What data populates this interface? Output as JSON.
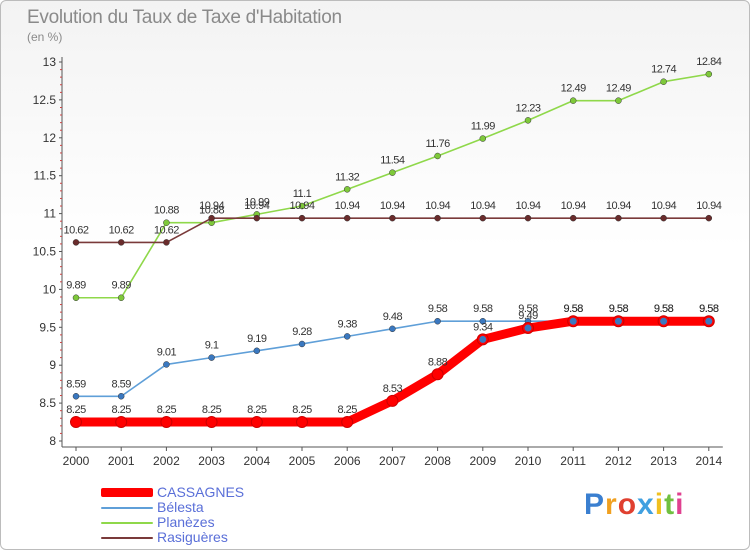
{
  "chart_data": {
    "type": "line",
    "title": "Evolution du Taux de Taxe d'Habitation",
    "subtitle": "(en %)",
    "x": [
      "2000",
      "2001",
      "2002",
      "2003",
      "2004",
      "2005",
      "2006",
      "2007",
      "2008",
      "2009",
      "2010",
      "2011",
      "2012",
      "2013",
      "2014"
    ],
    "ylim": [
      8,
      13
    ],
    "yticks": [
      "8",
      "8.5",
      "9",
      "9.5",
      "10",
      "10.5",
      "11",
      "11.5",
      "12",
      "12.5",
      "13"
    ],
    "grid": false,
    "legend_position": "bottom-left",
    "series": [
      {
        "name": "CASSAGNES",
        "color": "#ff0000",
        "marker_color": "#3a78c0",
        "values": [
          8.25,
          8.25,
          8.25,
          8.25,
          8.25,
          8.25,
          8.25,
          8.53,
          8.88,
          9.34,
          9.49,
          9.58,
          9.58,
          9.58,
          9.58
        ],
        "labels": [
          "8.25",
          "8.25",
          "8.25",
          "8.25",
          "8.25",
          "8.25",
          "8.25",
          "8.53",
          "8.88",
          "9.34",
          "9.49",
          "9.58",
          "9.58",
          "9.58",
          "9.58"
        ]
      },
      {
        "name": "Bélesta",
        "color": "#5f9fd8",
        "marker_color": "#3a78c0",
        "values": [
          8.59,
          8.59,
          9.01,
          9.1,
          9.19,
          9.28,
          9.38,
          9.48,
          9.58,
          9.58,
          9.58,
          9.58,
          9.58,
          9.58,
          9.58
        ],
        "labels": [
          "8.59",
          "8.59",
          "9.01",
          "9.1",
          "9.19",
          "9.28",
          "9.38",
          "9.48",
          "9.58",
          "9.58",
          "9.58",
          "9.58",
          "9.58",
          "9.58",
          "9.58"
        ]
      },
      {
        "name": "Planèzes",
        "color": "#8fd84a",
        "marker_color": "#7ec83a",
        "values": [
          9.89,
          9.89,
          10.88,
          10.88,
          10.99,
          11.1,
          11.32,
          11.54,
          11.76,
          11.99,
          12.23,
          12.49,
          12.49,
          12.74,
          12.84
        ],
        "labels": [
          "9.89",
          "9.89",
          "10.88",
          "10.88",
          "10.99",
          "11.1",
          "11.32",
          "11.54",
          "11.76",
          "11.99",
          "12.23",
          "12.49",
          "12.49",
          "12.74",
          "12.84"
        ]
      },
      {
        "name": "Rasiguères",
        "color": "#7a3a3a",
        "marker_color": "#6a2c2c",
        "values": [
          10.62,
          10.62,
          10.62,
          10.94,
          10.94,
          10.94,
          10.94,
          10.94,
          10.94,
          10.94,
          10.94,
          10.94,
          10.94,
          10.94,
          10.94
        ],
        "labels": [
          "10.62",
          "10.62",
          "10.62",
          "10.94",
          "10.94",
          "10.94",
          "10.94",
          "10.94",
          "10.94",
          "10.94",
          "10.94",
          "10.94",
          "10.94",
          "10.94",
          "10.94"
        ]
      }
    ]
  },
  "logo": {
    "letters": [
      "P",
      "r",
      "o",
      "x",
      "i",
      "t",
      "i"
    ],
    "colors": [
      "#3a7fd0",
      "#f0a020",
      "#e04030",
      "#40a0e0",
      "#f0c020",
      "#70c040",
      "#e04090"
    ]
  }
}
